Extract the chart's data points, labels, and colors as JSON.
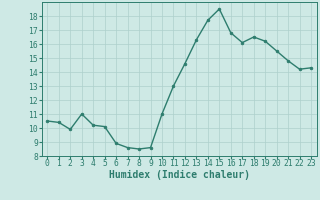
{
  "x": [
    0,
    1,
    2,
    3,
    4,
    5,
    6,
    7,
    8,
    9,
    10,
    11,
    12,
    13,
    14,
    15,
    16,
    17,
    18,
    19,
    20,
    21,
    22,
    23
  ],
  "y": [
    10.5,
    10.4,
    9.9,
    11.0,
    10.2,
    10.1,
    8.9,
    8.6,
    8.5,
    8.6,
    11.0,
    13.0,
    14.6,
    16.3,
    17.7,
    18.5,
    16.8,
    16.1,
    16.5,
    16.2,
    15.5,
    14.8,
    14.2,
    14.3
  ],
  "line_color": "#2e7d6e",
  "marker": "o",
  "marker_size": 2.0,
  "bg_color": "#cee9e5",
  "grid_color": "#aed0cc",
  "xlabel": "Humidex (Indice chaleur)",
  "ylim": [
    8,
    19
  ],
  "xlim": [
    -0.5,
    23.5
  ],
  "yticks": [
    8,
    9,
    10,
    11,
    12,
    13,
    14,
    15,
    16,
    17,
    18
  ],
  "xticks": [
    0,
    1,
    2,
    3,
    4,
    5,
    6,
    7,
    8,
    9,
    10,
    11,
    12,
    13,
    14,
    15,
    16,
    17,
    18,
    19,
    20,
    21,
    22,
    23
  ],
  "axis_color": "#2e7d6e",
  "label_fontsize": 6.5,
  "tick_fontsize": 5.8,
  "xlabel_fontsize": 7.0
}
